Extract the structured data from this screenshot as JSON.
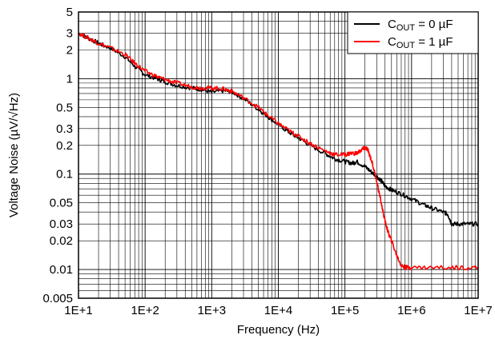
{
  "chart_data": {
    "type": "line",
    "title": "",
    "xlabel": "Frequency (Hz)",
    "ylabel": "Voltage Noise (µV/√Hz)",
    "xscale": "log",
    "yscale": "log",
    "xlim": [
      10,
      10000000
    ],
    "ylim": [
      0.005,
      5
    ],
    "grid": true,
    "legend_position": "top-right",
    "x_tick_labels": [
      "1E+1",
      "1E+2",
      "1E+3",
      "1E+4",
      "1E+5",
      "1E+6",
      "1E+7"
    ],
    "x_tick_values": [
      10,
      100,
      1000,
      10000,
      100000,
      1000000,
      10000000
    ],
    "y_tick_labels": [
      "0.005",
      "0.01",
      "0.02",
      "0.03",
      "0.05",
      "0.1",
      "0.2",
      "0.3",
      "0.5",
      "1",
      "2",
      "3",
      "5"
    ],
    "y_tick_values": [
      0.005,
      0.01,
      0.02,
      0.03,
      0.05,
      0.1,
      0.2,
      0.3,
      0.5,
      1,
      2,
      3,
      5
    ],
    "series": [
      {
        "name": "C_OUT = 0 µF",
        "color": "#000000",
        "x": [
          10,
          15,
          20,
          30,
          50,
          70,
          100,
          150,
          200,
          300,
          500,
          700,
          1000,
          1500,
          2000,
          3000,
          5000,
          7000,
          10000,
          15000,
          20000,
          30000,
          50000,
          70000,
          100000,
          130000,
          150000,
          200000,
          250000,
          300000,
          350000,
          400000,
          500000,
          700000,
          1000000,
          1500000,
          2000000,
          3000000,
          3500000,
          4000000,
          5000000,
          7000000,
          10000000
        ],
        "y": [
          3.0,
          2.6,
          2.35,
          2.1,
          1.7,
          1.35,
          1.1,
          1.0,
          0.93,
          0.85,
          0.8,
          0.77,
          0.72,
          0.75,
          0.73,
          0.62,
          0.48,
          0.4,
          0.33,
          0.27,
          0.24,
          0.2,
          0.165,
          0.145,
          0.135,
          0.13,
          0.135,
          0.12,
          0.105,
          0.095,
          0.085,
          0.075,
          0.068,
          0.062,
          0.055,
          0.048,
          0.044,
          0.04,
          0.038,
          0.03,
          0.03,
          0.03,
          0.03
        ]
      },
      {
        "name": "C_OUT = 1 µF",
        "color": "#ff0000",
        "x": [
          10,
          15,
          20,
          30,
          50,
          70,
          100,
          150,
          200,
          300,
          500,
          700,
          1000,
          1500,
          2000,
          3000,
          5000,
          7000,
          10000,
          15000,
          20000,
          30000,
          50000,
          70000,
          100000,
          120000,
          150000,
          180000,
          200000,
          220000,
          250000,
          300000,
          350000,
          400000,
          450000,
          500000,
          600000,
          700000,
          800000,
          1000000,
          2000000,
          5000000,
          10000000
        ],
        "y": [
          3.0,
          2.6,
          2.35,
          2.1,
          1.8,
          1.45,
          1.2,
          1.05,
          0.98,
          0.9,
          0.82,
          0.8,
          0.8,
          0.78,
          0.74,
          0.63,
          0.5,
          0.41,
          0.34,
          0.28,
          0.25,
          0.21,
          0.175,
          0.16,
          0.16,
          0.165,
          0.165,
          0.18,
          0.19,
          0.18,
          0.14,
          0.085,
          0.05,
          0.032,
          0.024,
          0.02,
          0.014,
          0.011,
          0.0105,
          0.0105,
          0.0105,
          0.0105,
          0.0105
        ]
      }
    ],
    "legend_entries": [
      {
        "main": "C",
        "sub": "OUT",
        "rest": " = 0 µF",
        "color": "#000000"
      },
      {
        "main": "C",
        "sub": "OUT",
        "rest": " = 1 µF",
        "color": "#ff0000"
      }
    ]
  }
}
